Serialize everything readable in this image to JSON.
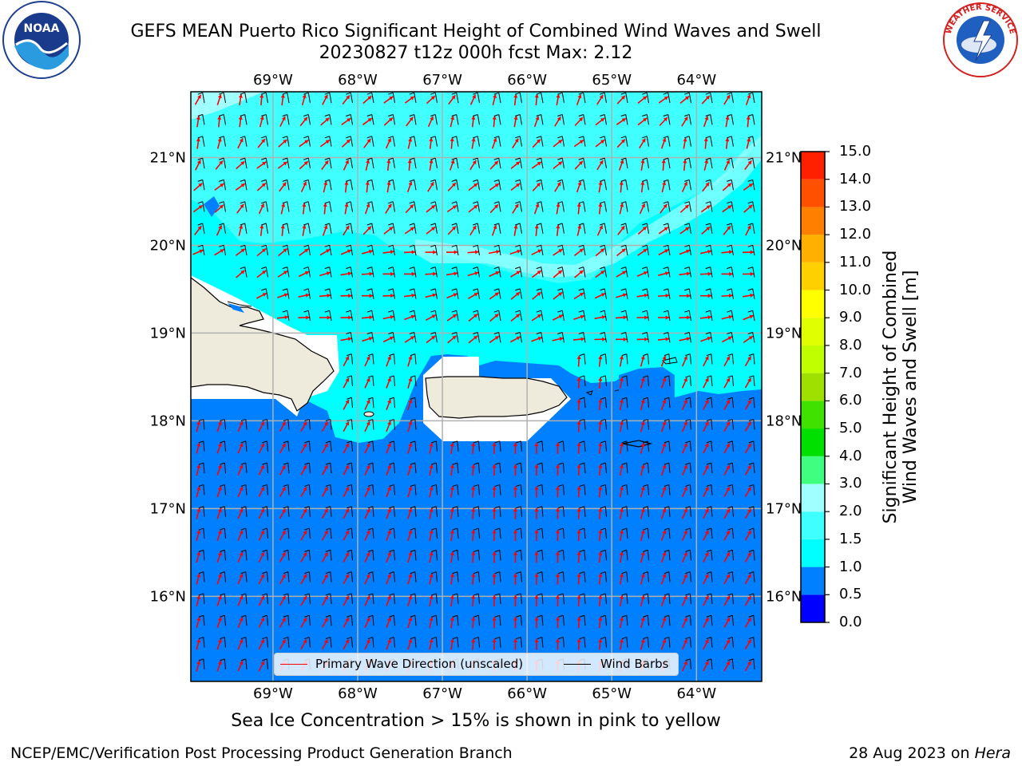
{
  "title": {
    "line1": "GEFS MEAN Puerto Rico Significant Height of Combined Wind Waves and Swell",
    "line2": "20230827 t12z 000h fcst   Max: 2.12"
  },
  "logos": {
    "left": "noaa-logo",
    "right": "nws-logo"
  },
  "map": {
    "lon_range": [
      -69.97,
      -63.23
    ],
    "lat_range": [
      15.03,
      21.75
    ],
    "lon_ticks": [
      {
        "value": -69,
        "label": "69°W"
      },
      {
        "value": -68,
        "label": "68°W"
      },
      {
        "value": -67,
        "label": "67°W"
      },
      {
        "value": -66,
        "label": "66°W"
      },
      {
        "value": -65,
        "label": "65°W"
      },
      {
        "value": -64,
        "label": "64°W"
      }
    ],
    "lat_ticks": [
      {
        "value": 21,
        "label": "21°N"
      },
      {
        "value": 20,
        "label": "20°N"
      },
      {
        "value": 19,
        "label": "19°N"
      },
      {
        "value": 18,
        "label": "18°N"
      },
      {
        "value": 17,
        "label": "17°N"
      },
      {
        "value": 16,
        "label": "16°N"
      }
    ],
    "gridlines": true,
    "ocean_color_low": "#0080ff",
    "ocean_color_mid": "#00ffff",
    "ocean_color_high": "#40ffff",
    "land_color": "#efebdc",
    "wave_arrow_color": "#ff0000",
    "wind_barb_color": "#000000"
  },
  "legend": {
    "placement": "lower-center",
    "wave_label": "Primary Wave Direction (unscaled)",
    "wave_color": "#ff0000",
    "wind_label": "Wind Barbs",
    "wind_color": "#000000"
  },
  "colorbar": {
    "title_line1": "Significant Height of Combined",
    "title_line2": "Wind Waves and Swell [m]",
    "levels": [
      "0.0",
      "0.5",
      "1.0",
      "1.5",
      "2.0",
      "3.0",
      "4.0",
      "5.0",
      "6.0",
      "7.0",
      "8.0",
      "9.0",
      "10.0",
      "11.0",
      "12.0",
      "13.0",
      "14.0",
      "15.0"
    ],
    "colors": [
      "#0000ff",
      "#0080ff",
      "#00ffff",
      "#40ffff",
      "#a0ffff",
      "#40ff80",
      "#00e000",
      "#40e000",
      "#a0e000",
      "#c0ff00",
      "#e0ff00",
      "#ffff00",
      "#ffd000",
      "#ffb000",
      "#ff8000",
      "#ff5000",
      "#ff2000"
    ]
  },
  "notes": {
    "sea_ice": "Sea Ice Concentration > 15% is shown in pink to yellow"
  },
  "footer": {
    "left": "NCEP/EMC/Verification Post Processing Product Generation Branch",
    "right_date": "28 Aug 2023 on ",
    "right_machine": "Hera"
  }
}
